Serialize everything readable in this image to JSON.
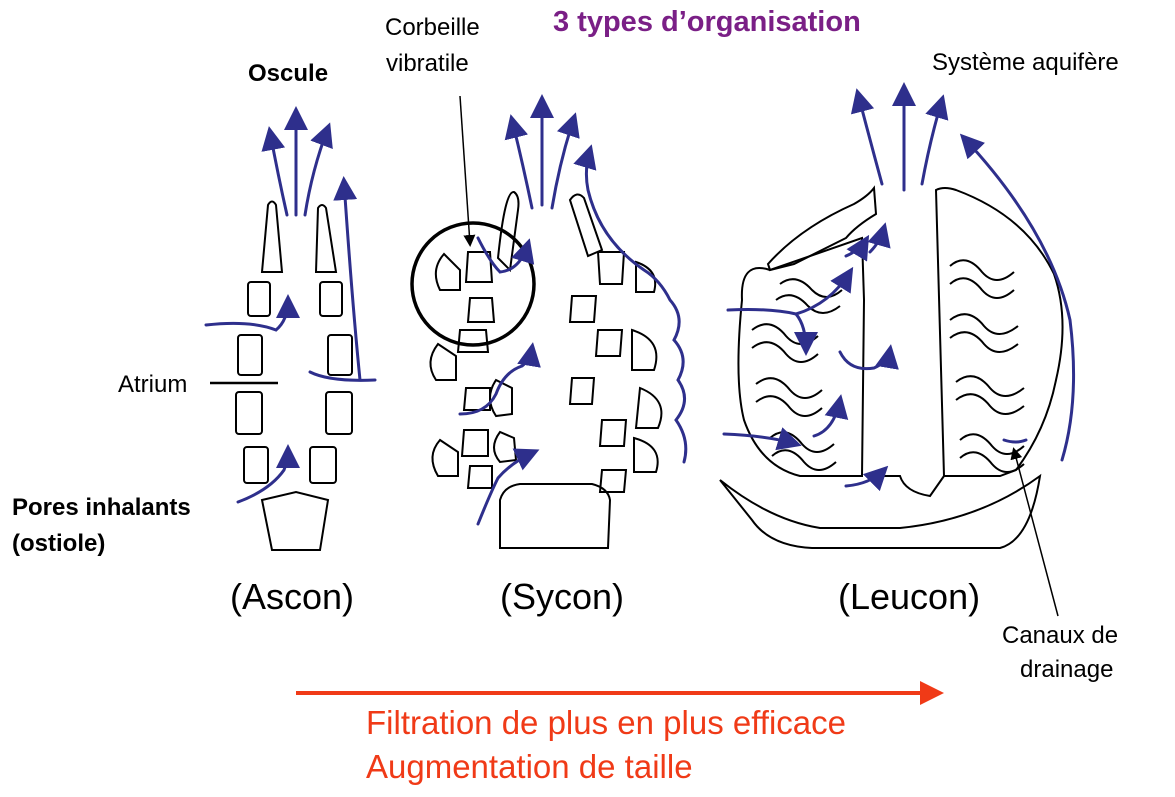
{
  "title": "3 types d’organisation",
  "labels": {
    "oscule": "Oscule",
    "corbeille_line1": "Corbeille",
    "corbeille_line2": "vibratile",
    "systeme": "Système aquifère",
    "atrium": "Atrium",
    "pores_line1": "Pores inhalants",
    "pores_line2": "(ostiole)",
    "canaux_line1": "Canaux de",
    "canaux_line2": "drainage"
  },
  "types": {
    "ascon": "(Ascon)",
    "sycon": "(Sycon)",
    "leucon": "(Leucon)"
  },
  "trend": {
    "line1": "Filtration de plus en plus efficace",
    "line2": "Augmentation de taille"
  },
  "colors": {
    "flow": "#2e2f8c",
    "title": "#7a1f86",
    "accent": "#f03a17"
  }
}
